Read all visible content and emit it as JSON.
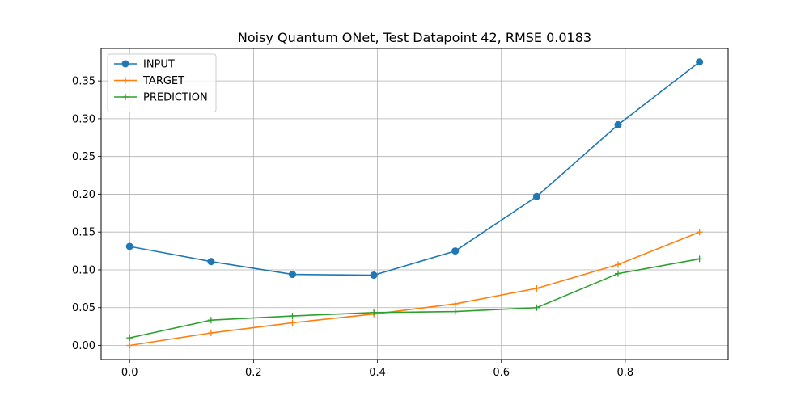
{
  "chart_data": {
    "type": "line",
    "title": "Noisy Quantum ONet, Test Datapoint 42, RMSE 0.0183",
    "xlabel": "",
    "ylabel": "",
    "xlim": [
      -0.046,
      0.966
    ],
    "ylim": [
      -0.0187,
      0.3929
    ],
    "xticks": [
      "0.0",
      "0.2",
      "0.4",
      "0.6",
      "0.8"
    ],
    "yticks": [
      "0.00",
      "0.05",
      "0.10",
      "0.15",
      "0.20",
      "0.25",
      "0.30",
      "0.35"
    ],
    "grid": true,
    "legend_position": "upper-left",
    "x": [
      0.0,
      0.1314,
      0.2628,
      0.3942,
      0.5256,
      0.657,
      0.7884,
      0.9198
    ],
    "series": [
      {
        "name": "INPUT",
        "color": "#1f77b4",
        "marker": "circle",
        "values": [
          0.131,
          0.111,
          0.094,
          0.093,
          0.125,
          0.197,
          0.292,
          0.375
        ]
      },
      {
        "name": "TARGET",
        "color": "#ff7f0e",
        "marker": "plus",
        "values": [
          0.0,
          0.0165,
          0.03,
          0.0415,
          0.055,
          0.0755,
          0.107,
          0.15
        ]
      },
      {
        "name": "PREDICTION",
        "color": "#2ca02c",
        "marker": "plus",
        "values": [
          0.01,
          0.0335,
          0.039,
          0.0435,
          0.0448,
          0.05,
          0.095,
          0.1145
        ]
      }
    ]
  }
}
